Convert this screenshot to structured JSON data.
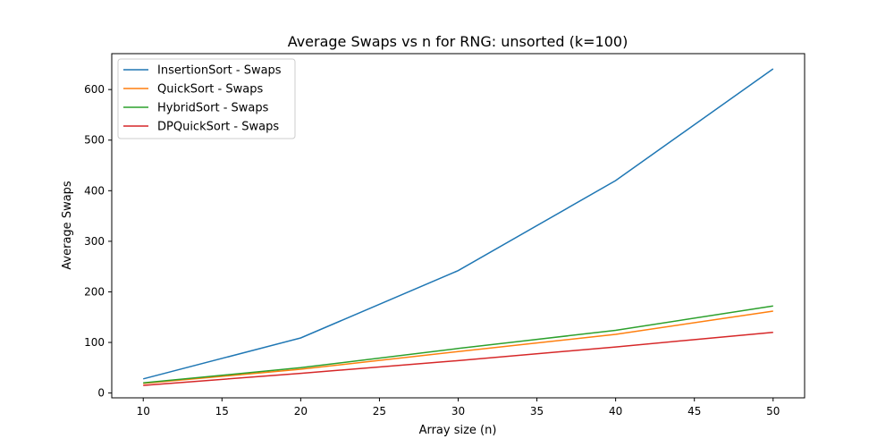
{
  "chart_data": {
    "type": "line",
    "title": "Average Swaps vs n for RNG: unsorted (k=100)",
    "xlabel": "Array size (n)",
    "ylabel": "Average Swaps",
    "x": [
      10,
      20,
      30,
      40,
      50
    ],
    "xlim": [
      8,
      52
    ],
    "ylim": [
      -9.5,
      671
    ],
    "xticks": [
      10,
      15,
      20,
      25,
      30,
      35,
      40,
      45,
      50
    ],
    "yticks": [
      0,
      100,
      200,
      300,
      400,
      500,
      600
    ],
    "grid": false,
    "legend_position": "upper-left",
    "series": [
      {
        "name": "InsertionSort - Swaps",
        "color": "#1f77b4",
        "values": [
          28,
          109,
          242,
          420,
          641
        ]
      },
      {
        "name": "QuickSort - Swaps",
        "color": "#ff7f0e",
        "values": [
          19,
          47,
          82,
          116,
          162
        ]
      },
      {
        "name": "HybridSort - Swaps",
        "color": "#2ca02c",
        "values": [
          20,
          50,
          88,
          124,
          172
        ]
      },
      {
        "name": "DPQuickSort - Swaps",
        "color": "#d62728",
        "values": [
          15,
          39,
          64,
          91,
          120
        ]
      }
    ]
  }
}
